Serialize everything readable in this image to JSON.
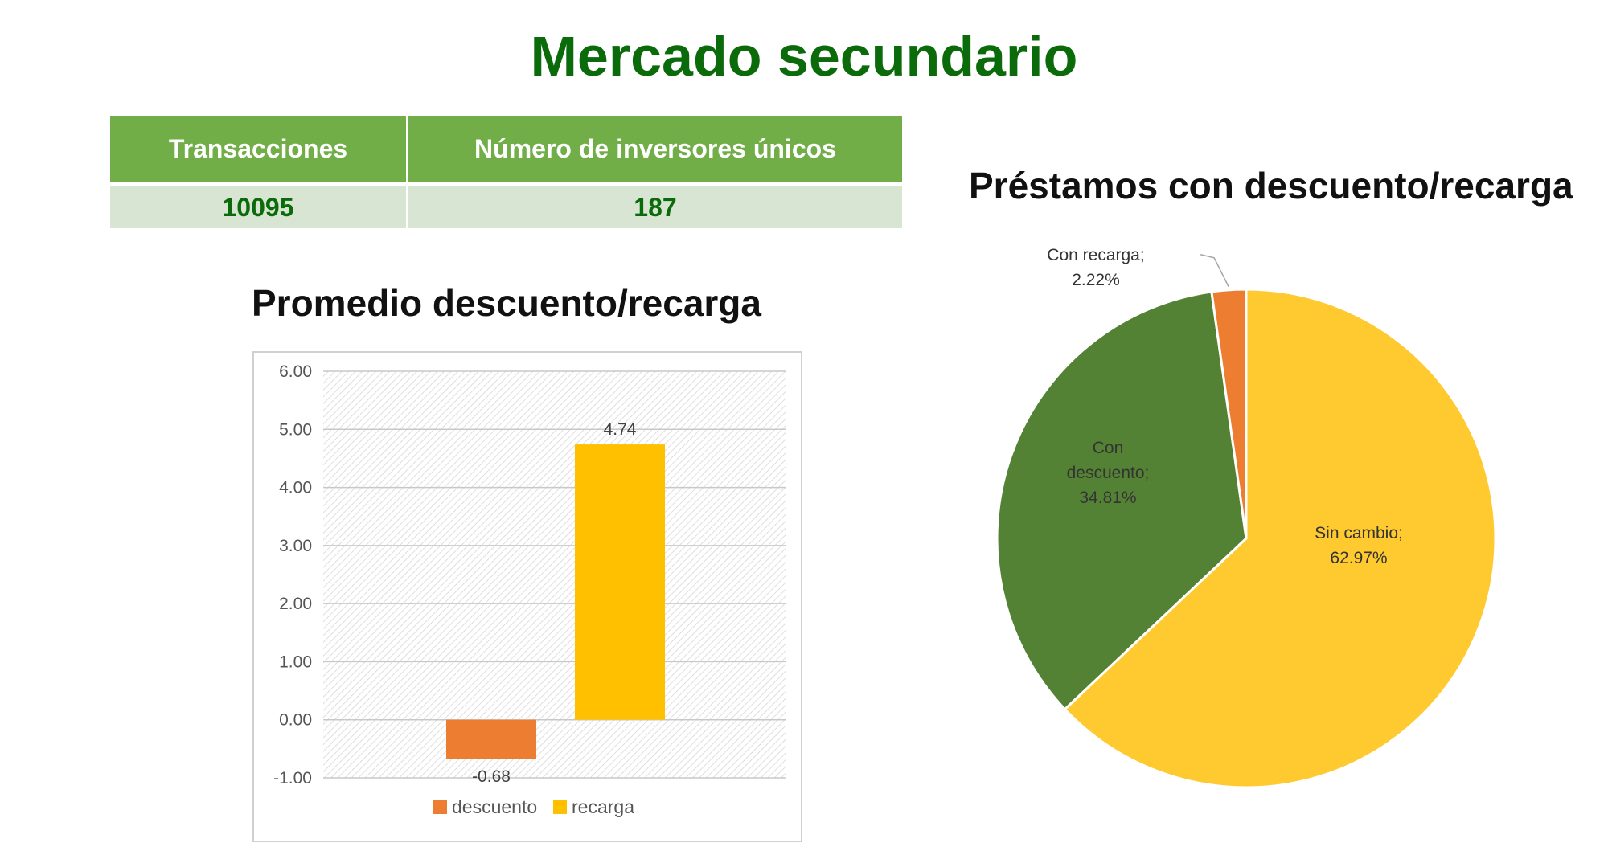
{
  "page": {
    "title": "Mercado secundario"
  },
  "summary_table": {
    "headers": [
      "Transacciones",
      "Número de inversores únicos"
    ],
    "values": [
      "10095",
      "187"
    ]
  },
  "colors": {
    "title_green": "#0b6b0b",
    "header_green": "#72ae48",
    "row_fill": "#d9e5d3",
    "descuento": "#ed7d31",
    "recarga": "#ffc000",
    "sin_cambio": "#ffc930",
    "con_descuento": "#548235",
    "con_recarga": "#ed7d31"
  },
  "chart_data": [
    {
      "type": "bar",
      "title": "Promedio descuento/recarga",
      "series": [
        {
          "name": "descuento",
          "values": [
            -0.68
          ],
          "label": "-0.68",
          "color": "#ed7d31"
        },
        {
          "name": "recarga",
          "values": [
            4.74
          ],
          "label": "4.74",
          "color": "#ffc000"
        }
      ],
      "ylim": [
        -1,
        6
      ],
      "yticks": [
        "6.00",
        "5.00",
        "4.00",
        "3.00",
        "2.00",
        "1.00",
        "0.00",
        "-1.00"
      ],
      "grid": true,
      "legend": "bottom"
    },
    {
      "type": "pie",
      "title": "Préstamos con descuento/recarga",
      "slices": [
        {
          "name": "Sin cambio",
          "value": 62.97,
          "label_lines": [
            "Sin cambio;",
            "62.97%"
          ],
          "color": "#ffc930"
        },
        {
          "name": "Con descuento",
          "value": 34.81,
          "label_lines": [
            "Con",
            "descuento;",
            "34.81%"
          ],
          "color": "#548235"
        },
        {
          "name": "Con recarga",
          "value": 2.22,
          "label_lines": [
            "Con recarga;",
            "2.22%"
          ],
          "color": "#ed7d31"
        }
      ],
      "start_angle": "12 o'clock, clockwise"
    }
  ]
}
